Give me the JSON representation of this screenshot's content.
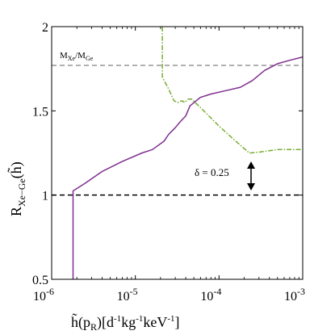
{
  "chart_data": {
    "type": "line",
    "xscale": "log",
    "xlim": [
      1e-06,
      0.001
    ],
    "ylim": [
      0.5,
      2
    ],
    "x_ticks": [
      {
        "value": 1e-06,
        "label": "10",
        "exp": "-6"
      },
      {
        "value": 1e-05,
        "label": "10",
        "exp": "-5"
      },
      {
        "value": 0.0001,
        "label": "10",
        "exp": "-4"
      },
      {
        "value": 0.001,
        "label": "10",
        "exp": "-3"
      }
    ],
    "y_ticks": [
      {
        "value": 0.5,
        "label": "0.5"
      },
      {
        "value": 1,
        "label": "1"
      },
      {
        "value": 1.5,
        "label": "1.5"
      },
      {
        "value": 2,
        "label": "2"
      }
    ],
    "xlabel": {
      "base": "h̃(p",
      "sub": "R",
      "rest": ")[d",
      "units": "kg",
      "units2": "keV",
      "exp": "-1"
    },
    "ylabel": {
      "base": "R",
      "sub": "Xe−Ge",
      "rest": "(h̃)"
    },
    "series": [
      {
        "style": "solid",
        "color": "#7e2f8e",
        "points": [
          [
            1.8e-06,
            0.5
          ],
          [
            1.8e-06,
            1.025
          ],
          [
            2.5e-06,
            1.07
          ],
          [
            4e-06,
            1.14
          ],
          [
            7e-06,
            1.2
          ],
          [
            1.2e-05,
            1.25
          ],
          [
            1.6e-05,
            1.27
          ],
          [
            2.2e-05,
            1.32
          ],
          [
            2.5e-05,
            1.36
          ],
          [
            3e-05,
            1.4
          ],
          [
            3.5e-05,
            1.44
          ],
          [
            4e-05,
            1.47
          ],
          [
            4.5e-05,
            1.53
          ],
          [
            6e-05,
            1.58
          ],
          [
            8e-05,
            1.6
          ],
          [
            0.00012,
            1.62
          ],
          [
            0.00018,
            1.64
          ],
          [
            0.00025,
            1.68
          ],
          [
            0.00035,
            1.74
          ],
          [
            0.0005,
            1.78
          ],
          [
            0.0007,
            1.8
          ],
          [
            0.001,
            1.82
          ]
        ]
      },
      {
        "style": "dashdot",
        "color": "#77ac30",
        "points": [
          [
            2.1e-05,
            2.0
          ],
          [
            2.1e-05,
            1.7
          ],
          [
            2.5e-05,
            1.63
          ],
          [
            2.9e-05,
            1.56
          ],
          [
            3.2e-05,
            1.55
          ],
          [
            3.6e-05,
            1.56
          ],
          [
            3.9e-05,
            1.55
          ],
          [
            4.3e-05,
            1.57
          ],
          [
            4.7e-05,
            1.57
          ],
          [
            6e-05,
            1.52
          ],
          [
            0.0001,
            1.41
          ],
          [
            0.00015,
            1.33
          ],
          [
            0.00023,
            1.25
          ],
          [
            0.0003,
            1.255
          ],
          [
            0.0005,
            1.27
          ],
          [
            0.001,
            1.27
          ]
        ]
      }
    ],
    "reference_lines": [
      {
        "y": 1.77,
        "style": "dashed",
        "color": "#808080"
      },
      {
        "y": 1.0,
        "style": "dashed",
        "color": "#000000"
      }
    ],
    "annotations": {
      "mass_ratio": {
        "m1": "M",
        "s1": "Xe",
        "slash": "/M",
        "s2": "Ge"
      },
      "delta": "δ = 0.25"
    }
  }
}
